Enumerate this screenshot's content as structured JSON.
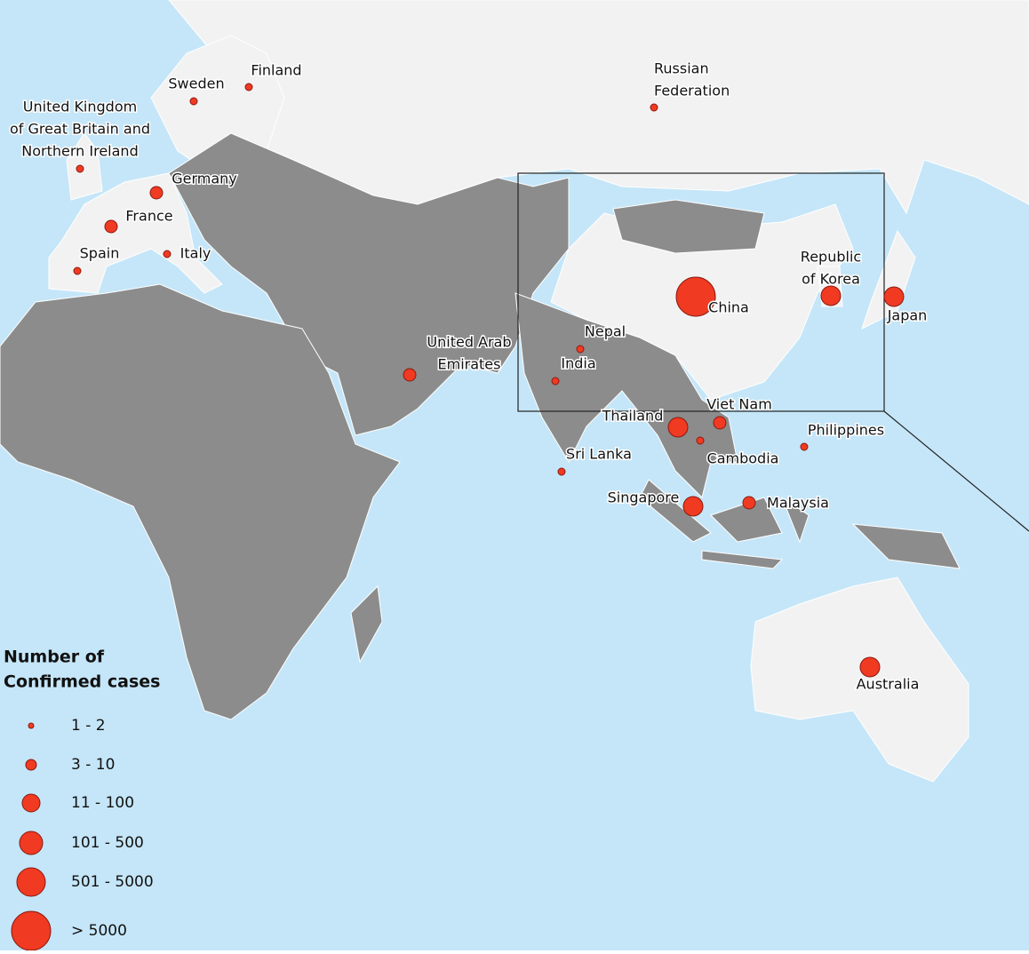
{
  "legend": {
    "title": [
      "Number of",
      "Confirmed cases"
    ],
    "items": [
      "1 - 2",
      "3 - 10",
      "11 - 100",
      "101 - 500",
      "501 - 5000",
      "> 5000"
    ]
  },
  "countries": [
    {
      "label": [
        "Finland"
      ]
    },
    {
      "label": [
        "Sweden"
      ]
    },
    {
      "label": [
        "United Kingdom",
        "of Great Britain and",
        "Northern Ireland"
      ]
    },
    {
      "label": [
        "Germany"
      ]
    },
    {
      "label": [
        "France"
      ]
    },
    {
      "label": [
        "Spain"
      ]
    },
    {
      "label": [
        "Italy"
      ]
    },
    {
      "label": [
        "Russian",
        "Federation"
      ]
    },
    {
      "label": [
        "China"
      ]
    },
    {
      "label": [
        "Republic",
        "of Korea"
      ]
    },
    {
      "label": [
        "Japan"
      ]
    },
    {
      "label": [
        "Nepal"
      ]
    },
    {
      "label": [
        "India"
      ]
    },
    {
      "label": [
        "United Arab",
        "Emirates"
      ]
    },
    {
      "label": [
        "Thailand"
      ]
    },
    {
      "label": [
        "Viet Nam"
      ]
    },
    {
      "label": [
        "Cambodia"
      ]
    },
    {
      "label": [
        "Philippines"
      ]
    },
    {
      "label": [
        "Sri Lanka"
      ]
    },
    {
      "label": [
        "Singapore"
      ]
    },
    {
      "label": [
        "Malaysia"
      ]
    },
    {
      "label": [
        "Australia"
      ]
    }
  ]
}
